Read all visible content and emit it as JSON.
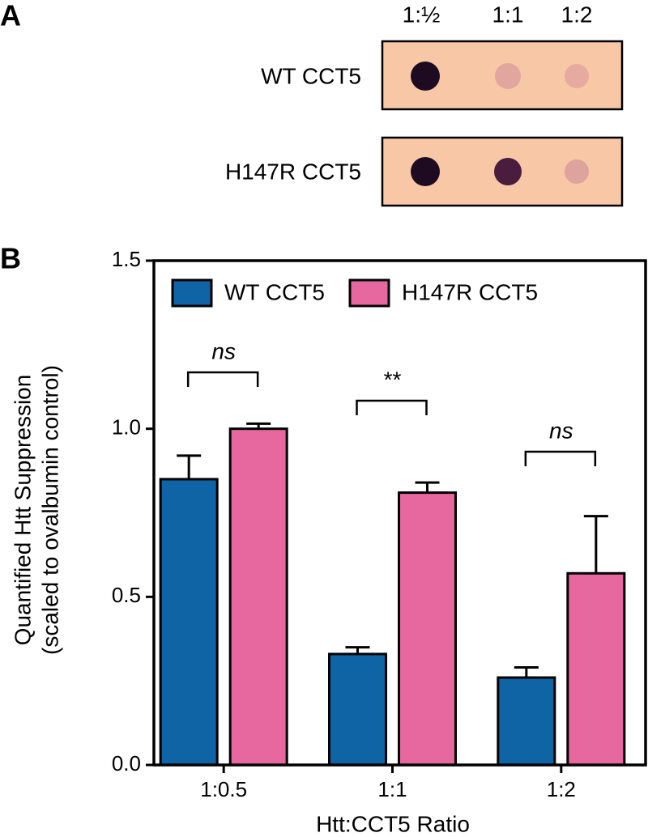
{
  "panel_a": {
    "label": "A",
    "columns": [
      "1:½",
      "1:1",
      "1:2"
    ],
    "rows": [
      "WT CCT5",
      "H147R CCT5"
    ]
  },
  "chart_data": {
    "type": "bar",
    "panel_label": "B",
    "y_label": [
      "Quantified Htt Suppression",
      "(scaled to ovalbumin control)"
    ],
    "x_label": "Htt:CCT5 Ratio",
    "categories": [
      "1:0.5",
      "1:1",
      "1:2"
    ],
    "series": [
      {
        "name": "WT CCT5",
        "color": "#0f64a6",
        "values": [
          0.85,
          0.33,
          0.26
        ],
        "errors": [
          0.07,
          0.02,
          0.03
        ]
      },
      {
        "name": "H147R CCT5",
        "color": "#e6689e",
        "values": [
          1.0,
          0.81,
          0.57
        ],
        "errors": [
          0.015,
          0.03,
          0.17
        ]
      }
    ],
    "ylim": [
      0,
      1.5
    ],
    "yticks": [
      {
        "value": 0,
        "label": "0.0"
      },
      {
        "value": 0.5,
        "label": "0.5"
      },
      {
        "value": 1.0,
        "label": "1.0"
      },
      {
        "value": 1.5,
        "label": "1.5"
      }
    ],
    "legend": "top",
    "annotations": [
      "ns",
      "**",
      "ns"
    ]
  }
}
